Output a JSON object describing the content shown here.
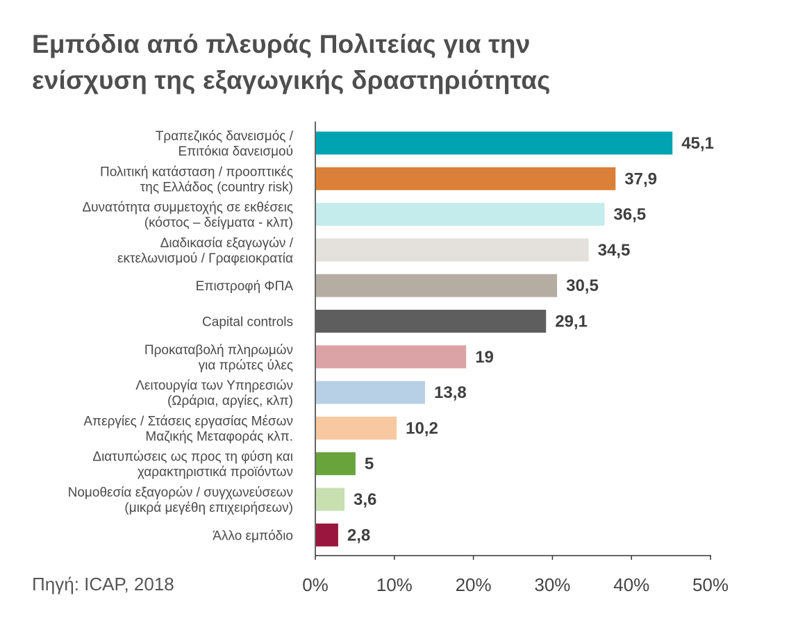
{
  "title": {
    "line1": "Εμπόδια από πλευράς Πολιτείας για την",
    "line2": "ενίσχυση της εξαγωγικής δραστηριότητας"
  },
  "source": "Πηγή: ICAP, 2018",
  "chart_data": {
    "type": "bar",
    "orientation": "horizontal",
    "title": "Εμπόδια από πλευράς Πολιτείας για την ενίσχυση της εξαγωγικής δραστηριότητας",
    "xlim": [
      0,
      50
    ],
    "x_ticks": [
      "0%",
      "10%",
      "20%",
      "30%",
      "40%",
      "50%"
    ],
    "grid": false,
    "categories": [
      [
        "Τραπεζικός δανεισμός /",
        "Επιτόκια δανεισμού"
      ],
      [
        "Πολιτική κατάσταση / προοπτικές",
        "της Ελλάδος (country risk)"
      ],
      [
        "Δυνατότητα συμμετοχής σε εκθέσεις",
        "(κόστος – δείγματα - κλπ)"
      ],
      [
        "Διαδικασία εξαγωγών /",
        "εκτελωνισμού / Γραφειοκρατία"
      ],
      [
        "Επιστροφή ΦΠΑ"
      ],
      [
        "Capital controls"
      ],
      [
        "Προκαταβολή πληρωμών",
        "για πρώτες ύλες"
      ],
      [
        "Λειτουργία των Υπηρεσιών",
        "(Ωράρια, αργίες, κλπ)"
      ],
      [
        "Απεργίες / Στάσεις εργασίας Μέσων",
        "Μαζικής Μεταφοράς κλπ."
      ],
      [
        "Διατυπώσεις ως προς τη φύση και",
        "χαρακτηριστικά προϊόντων"
      ],
      [
        "Νομοθεσία εξαγορών / συγχωνεύσεων",
        "(μικρά μεγέθη επιχειρήσεων)"
      ],
      [
        "Άλλο εμπόδιο"
      ]
    ],
    "values": [
      45.1,
      37.9,
      36.5,
      34.5,
      30.5,
      29.1,
      19,
      13.8,
      10.2,
      5,
      3.6,
      2.8
    ],
    "value_labels": [
      "45,1",
      "37,9",
      "36,5",
      "34,5",
      "30,5",
      "29,1",
      "19",
      "13,8",
      "10,2",
      "5",
      "3,6",
      "2,8"
    ],
    "colors": [
      "#00a3b1",
      "#db8039",
      "#c4eced",
      "#e4e0dc",
      "#b5aca2",
      "#5e5e5e",
      "#dba3a6",
      "#b8d0e6",
      "#f8c9a0",
      "#68a33c",
      "#c8dfb0",
      "#9b163e"
    ]
  }
}
